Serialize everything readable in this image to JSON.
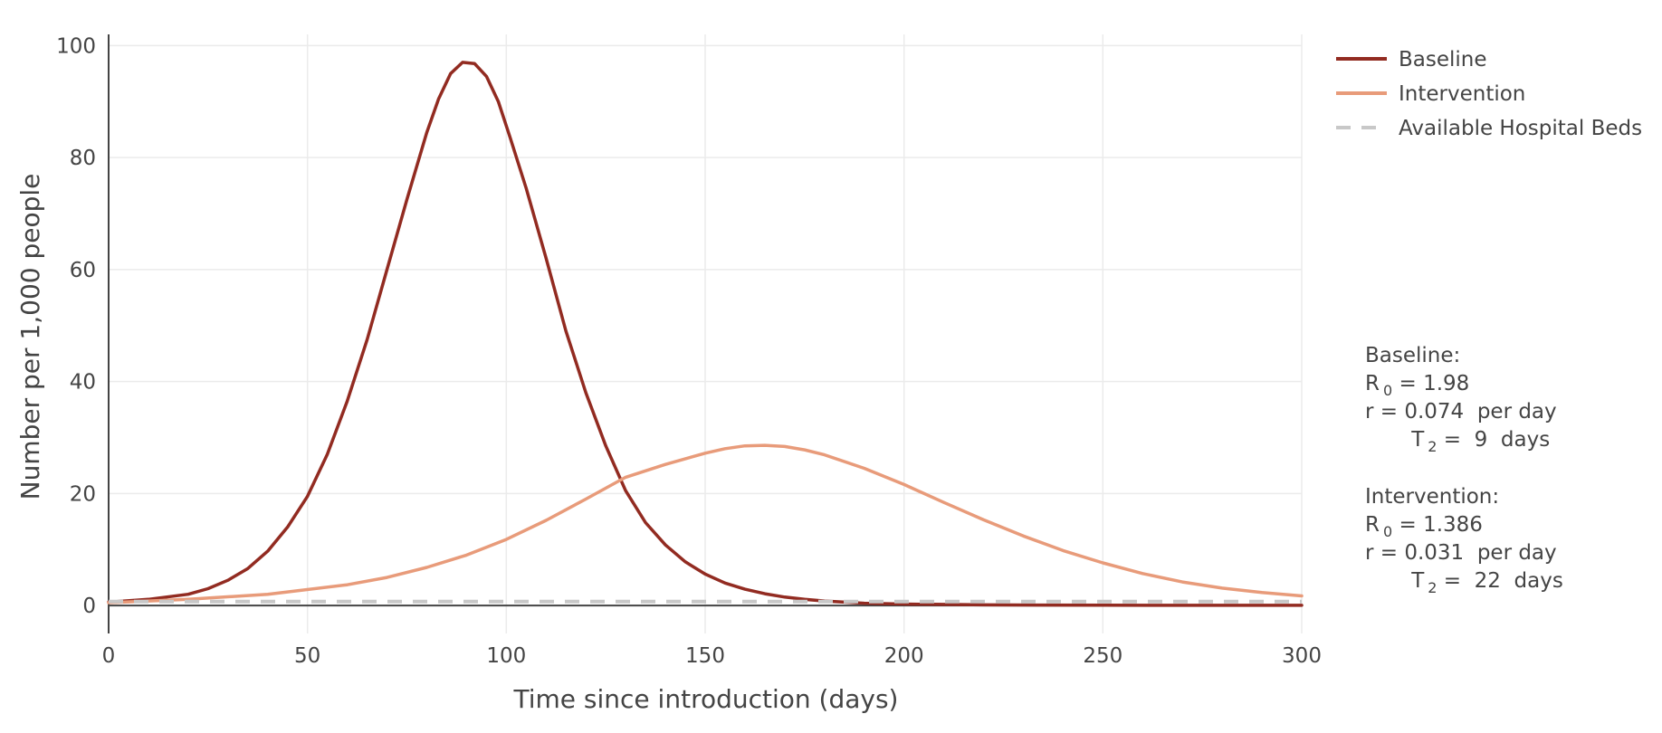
{
  "chart_data": {
    "type": "line",
    "xlabel": "Time since introduction (days)",
    "ylabel": "Number per 1,000 people",
    "xlim": [
      0,
      300
    ],
    "ylim": [
      -5,
      102
    ],
    "x_ticks": [
      0,
      50,
      100,
      150,
      200,
      250,
      300
    ],
    "y_ticks": [
      0,
      20,
      40,
      60,
      80,
      100
    ],
    "grid": true,
    "legend_position": "top-right",
    "series": [
      {
        "name": "Baseline",
        "color": "#922b21",
        "style": "solid",
        "x": [
          0,
          10,
          20,
          25,
          30,
          35,
          40,
          45,
          50,
          55,
          60,
          65,
          70,
          75,
          80,
          83,
          86,
          89,
          92,
          95,
          98,
          101,
          105,
          110,
          115,
          120,
          125,
          130,
          135,
          140,
          145,
          150,
          155,
          160,
          165,
          170,
          175,
          180,
          190,
          200,
          220,
          250,
          300
        ],
        "y": [
          0.6,
          1.1,
          2.0,
          3.0,
          4.5,
          6.6,
          9.7,
          14.0,
          19.5,
          27.0,
          36.5,
          47.5,
          60.0,
          72.5,
          84.5,
          90.5,
          95.0,
          97.0,
          96.8,
          94.5,
          90.0,
          83.5,
          74.5,
          62.0,
          49.0,
          38.0,
          28.5,
          20.5,
          14.8,
          10.8,
          7.8,
          5.6,
          4.0,
          2.9,
          2.1,
          1.5,
          1.1,
          0.8,
          0.4,
          0.25,
          0.1,
          0.05,
          0.02
        ]
      },
      {
        "name": "Intervention",
        "color": "#e89b7a",
        "style": "solid",
        "x": [
          0,
          20,
          40,
          60,
          70,
          80,
          90,
          100,
          110,
          120,
          130,
          140,
          150,
          155,
          160,
          165,
          170,
          175,
          180,
          190,
          200,
          210,
          220,
          230,
          240,
          250,
          260,
          270,
          280,
          290,
          300
        ],
        "y": [
          0.5,
          1.1,
          2.0,
          3.7,
          5.0,
          6.8,
          9.0,
          11.8,
          15.2,
          19.0,
          22.9,
          25.2,
          27.2,
          28.0,
          28.5,
          28.6,
          28.4,
          27.8,
          26.9,
          24.5,
          21.6,
          18.4,
          15.3,
          12.4,
          9.8,
          7.6,
          5.7,
          4.2,
          3.1,
          2.3,
          1.7
        ]
      },
      {
        "name": "Available Hospital Beds",
        "color": "#c8c8c8",
        "style": "dash",
        "x": [
          0,
          300
        ],
        "y": [
          0.7,
          0.7
        ]
      }
    ],
    "annotations": [
      {
        "title": "Baseline:",
        "r0_label": "R",
        "r0_sub": "0",
        "r0_value": " = 1.98",
        "r_line": "r = 0.074  per day",
        "t2_label": "T",
        "t2_sub": "2",
        "t2_value": " =  9  days"
      },
      {
        "title": "Intervention:",
        "r0_label": "R",
        "r0_sub": "0",
        "r0_value": " = 1.386",
        "r_line": "r = 0.031  per day",
        "t2_label": "T",
        "t2_sub": "2",
        "t2_value": " =  22  days"
      }
    ]
  }
}
